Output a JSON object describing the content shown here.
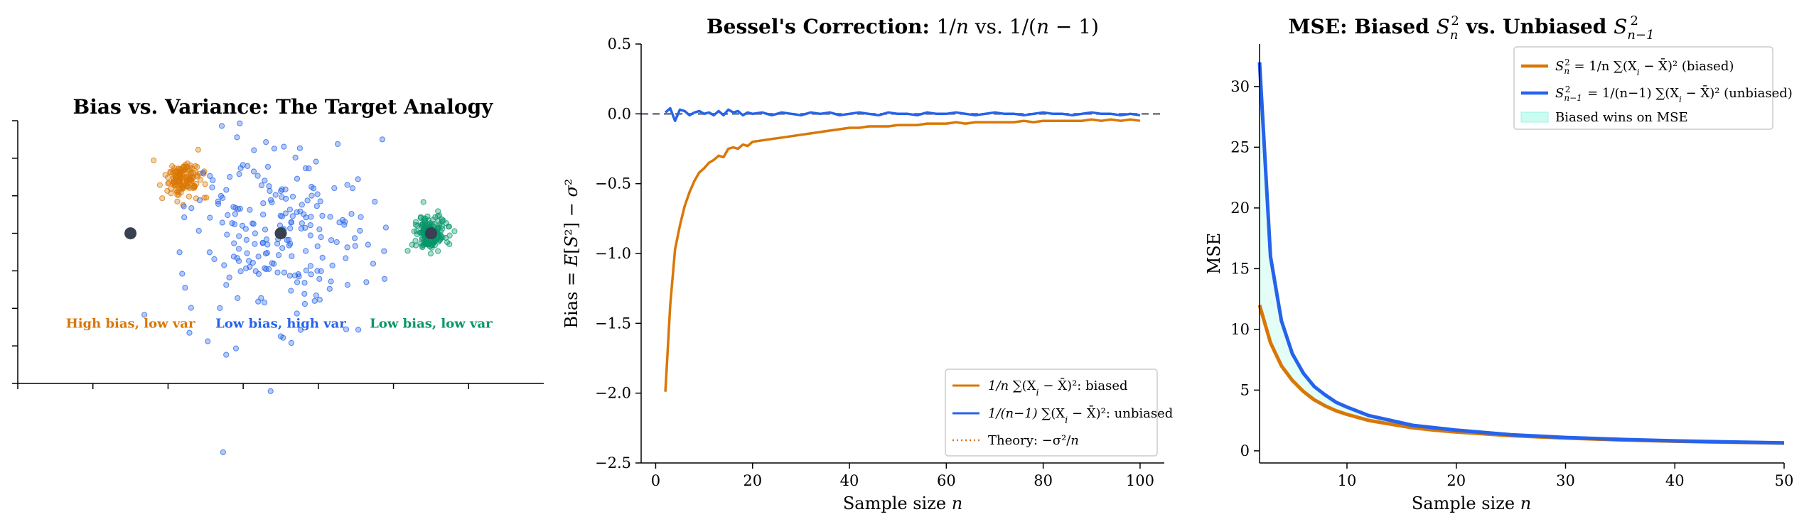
{
  "colors": {
    "orange": "#d97706",
    "blue": "#2563eb",
    "green": "#059669",
    "center": "#374151",
    "refline": "#6b7280",
    "fill": "#ccfbf1"
  },
  "chart_data": [
    {
      "type": "scatter",
      "title": "Bias vs. Variance: The Target Analogy",
      "xlim": [
        -1.5,
        5.5
      ],
      "ylim": [
        -2,
        1.5
      ],
      "grid": false,
      "targets": [
        {
          "name": "High bias, low var",
          "center": [
            0,
            0
          ],
          "cluster_center": [
            0.7,
            0.72
          ],
          "spread": 0.12,
          "count": 140,
          "color": "orange"
        },
        {
          "name": "Low bias, high var",
          "center": [
            2,
            0
          ],
          "cluster_center": [
            2,
            0
          ],
          "spread": 0.62,
          "count": 220,
          "color": "blue"
        },
        {
          "name": "Low bias, low var",
          "center": [
            4,
            0
          ],
          "cluster_center": [
            4,
            0
          ],
          "spread": 0.12,
          "count": 160,
          "color": "green"
        }
      ],
      "annotations": [
        {
          "text": "High bias, low var",
          "x": 0,
          "y": -1.2,
          "color": "orange"
        },
        {
          "text": "Low bias, high var",
          "x": 2,
          "y": -1.2,
          "color": "blue"
        },
        {
          "text": "Low bias, low var",
          "x": 4,
          "y": -1.2,
          "color": "green"
        }
      ]
    },
    {
      "type": "line",
      "title_parts": [
        "Bessel's Correction: ",
        "1/",
        "n",
        " vs. 1/(",
        "n",
        " − 1)"
      ],
      "xlabel_parts": [
        "Sample size ",
        "n"
      ],
      "ylabel_parts": [
        "Bias = ",
        "E",
        "[",
        "S",
        "²] − ",
        "σ",
        "²"
      ],
      "xlim": [
        -3,
        105
      ],
      "ylim": [
        -2.5,
        0.5
      ],
      "xticks": [
        0,
        20,
        40,
        60,
        80,
        100
      ],
      "xtick_labels": [
        "0",
        "20",
        "40",
        "60",
        "80",
        "100"
      ],
      "yticks": [
        -2.5,
        -2.0,
        -1.5,
        -1.0,
        -0.5,
        0.0,
        0.5
      ],
      "ytick_labels": [
        "−2.5",
        "−2.0",
        "−1.5",
        "−1.0",
        "−0.5",
        "0.0",
        "0.5"
      ],
      "reference_y": 0,
      "legend_position": "lower-right",
      "legend": [
        {
          "parts": [
            "1/n",
            " ∑(X",
            "i",
            " − X̄)²: biased"
          ],
          "color": "orange",
          "style": "solid"
        },
        {
          "parts": [
            "1/(n−1)",
            " ∑(X",
            "i",
            " − X̄)²: unbiased"
          ],
          "color": "blue",
          "style": "solid"
        },
        {
          "parts": [
            "Theory: −σ²/",
            "n"
          ],
          "color": "orange",
          "style": "dotted"
        }
      ],
      "series": [
        {
          "name": "biased",
          "color": "orange",
          "x": [
            2,
            3,
            4,
            5,
            6,
            7,
            8,
            9,
            10,
            11,
            12,
            13,
            14,
            15,
            16,
            17,
            18,
            19,
            20,
            22,
            24,
            26,
            28,
            30,
            32,
            34,
            36,
            38,
            40,
            42,
            44,
            46,
            48,
            50,
            52,
            54,
            56,
            58,
            60,
            62,
            64,
            66,
            68,
            70,
            72,
            74,
            76,
            78,
            80,
            82,
            84,
            86,
            88,
            90,
            92,
            94,
            96,
            98,
            100
          ],
          "y": [
            -1.99,
            -1.37,
            -0.97,
            -0.8,
            -0.66,
            -0.56,
            -0.48,
            -0.42,
            -0.39,
            -0.35,
            -0.33,
            -0.3,
            -0.31,
            -0.25,
            -0.24,
            -0.25,
            -0.22,
            -0.23,
            -0.2,
            -0.19,
            -0.18,
            -0.17,
            -0.16,
            -0.15,
            -0.14,
            -0.13,
            -0.12,
            -0.11,
            -0.1,
            -0.1,
            -0.09,
            -0.09,
            -0.09,
            -0.08,
            -0.08,
            -0.08,
            -0.07,
            -0.07,
            -0.07,
            -0.06,
            -0.07,
            -0.06,
            -0.06,
            -0.06,
            -0.06,
            -0.06,
            -0.05,
            -0.06,
            -0.05,
            -0.05,
            -0.05,
            -0.05,
            -0.05,
            -0.04,
            -0.05,
            -0.04,
            -0.05,
            -0.04,
            -0.05
          ]
        },
        {
          "name": "unbiased",
          "color": "blue",
          "x": [
            2,
            3,
            4,
            5,
            6,
            7,
            8,
            9,
            10,
            11,
            12,
            13,
            14,
            15,
            16,
            17,
            18,
            19,
            20,
            22,
            24,
            26,
            28,
            30,
            32,
            34,
            36,
            38,
            40,
            42,
            44,
            46,
            48,
            50,
            52,
            54,
            56,
            58,
            60,
            62,
            64,
            66,
            68,
            70,
            72,
            74,
            76,
            78,
            80,
            82,
            84,
            86,
            88,
            90,
            92,
            94,
            96,
            98,
            100
          ],
          "y": [
            0.01,
            0.04,
            -0.05,
            0.03,
            0.02,
            -0.01,
            0.01,
            0.02,
            0.0,
            0.01,
            -0.01,
            0.02,
            -0.01,
            0.03,
            0.01,
            0.02,
            -0.01,
            0.01,
            0.0,
            0.01,
            -0.01,
            0.01,
            0.0,
            -0.01,
            0.01,
            0.0,
            0.01,
            -0.01,
            0.0,
            0.01,
            0.0,
            -0.01,
            0.01,
            0.0,
            0.0,
            -0.01,
            0.01,
            0.0,
            0.0,
            0.01,
            0.0,
            -0.01,
            0.0,
            0.01,
            0.0,
            0.0,
            -0.01,
            0.0,
            0.01,
            0.0,
            0.0,
            -0.01,
            0.0,
            0.01,
            0.0,
            0.0,
            -0.01,
            0.0,
            -0.01
          ]
        }
      ]
    },
    {
      "type": "line",
      "title_parts": [
        "MSE: Biased ",
        "S",
        "n",
        "2",
        " vs. Unbiased ",
        "S",
        "n−1",
        "2"
      ],
      "xlabel_parts": [
        "Sample size ",
        "n"
      ],
      "ylabel": "MSE",
      "xlim": [
        2,
        50
      ],
      "ylim": [
        -1,
        33.5
      ],
      "xticks": [
        10,
        20,
        30,
        40,
        50
      ],
      "xtick_labels": [
        "10",
        "20",
        "30",
        "40",
        "50"
      ],
      "yticks": [
        0,
        5,
        10,
        15,
        20,
        25,
        30
      ],
      "ytick_labels": [
        "0",
        "5",
        "10",
        "15",
        "20",
        "25",
        "30"
      ],
      "legend_position": "top-right",
      "legend": [
        {
          "parts": [
            "S",
            "n",
            "2",
            " = 1/n ∑(X",
            "i",
            " − X̄)² (biased)"
          ],
          "color": "orange",
          "style": "solid"
        },
        {
          "parts": [
            "S",
            "n−1",
            "2",
            " = 1/(n−1) ∑(X",
            "i",
            " − X̄)² (unbiased)"
          ],
          "color": "blue",
          "style": "solid"
        },
        {
          "parts": [
            "Biased wins on MSE"
          ],
          "color": "fill",
          "style": "patch"
        }
      ],
      "series": [
        {
          "name": "biased",
          "color": "orange",
          "x": [
            2,
            3,
            4,
            5,
            6,
            7,
            8,
            9,
            10,
            12,
            14,
            16,
            18,
            20,
            25,
            30,
            35,
            40,
            45,
            50
          ],
          "y": [
            12.0,
            8.9,
            7.0,
            5.8,
            4.9,
            4.2,
            3.7,
            3.3,
            3.0,
            2.5,
            2.2,
            1.9,
            1.7,
            1.55,
            1.25,
            1.05,
            0.9,
            0.79,
            0.71,
            0.64
          ]
        },
        {
          "name": "unbiased",
          "color": "blue",
          "x": [
            2,
            3,
            4,
            5,
            6,
            7,
            8,
            9,
            10,
            12,
            14,
            16,
            18,
            20,
            25,
            30,
            35,
            40,
            45,
            50
          ],
          "y": [
            32.0,
            16.0,
            10.7,
            8.0,
            6.4,
            5.3,
            4.6,
            4.0,
            3.6,
            2.9,
            2.5,
            2.1,
            1.9,
            1.7,
            1.33,
            1.1,
            0.94,
            0.82,
            0.73,
            0.65
          ]
        }
      ]
    }
  ]
}
